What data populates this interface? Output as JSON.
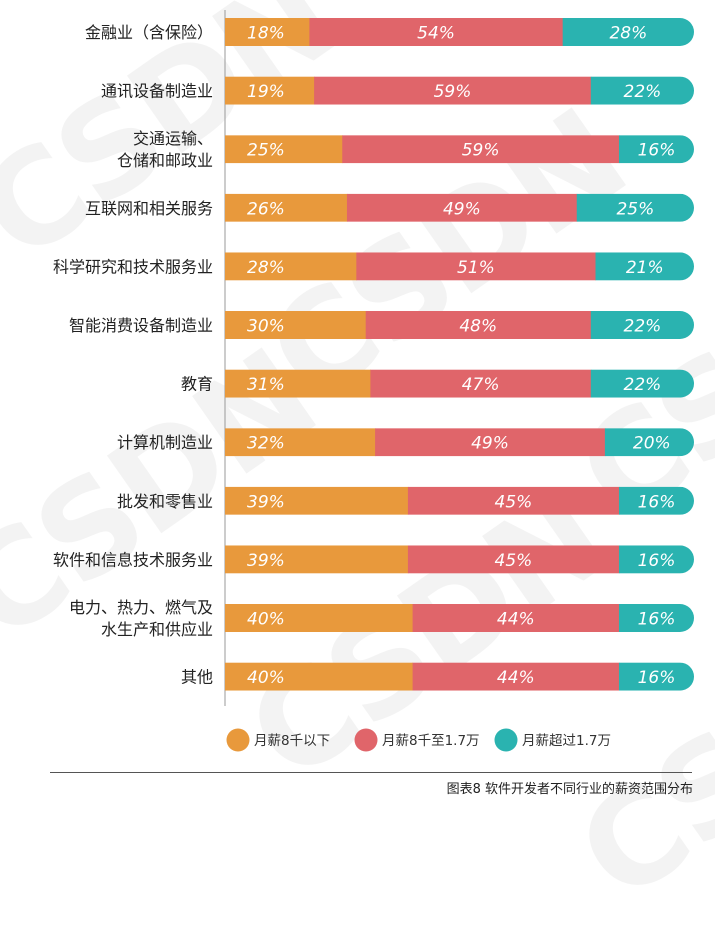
{
  "chart_data": {
    "type": "bar",
    "orientation": "horizontal",
    "stacked": true,
    "categories": [
      "金融业（含保险）",
      "通讯设备制造业",
      "交通运输、\n仓储和邮政业",
      "互联网和相关服务",
      "科学研究和技术服务业",
      "智能消费设备制造业",
      "教育",
      "计算机制造业",
      "批发和零售业",
      "软件和信息技术服务业",
      "电力、热力、燃气及\n水生产和供应业",
      "其他"
    ],
    "series": [
      {
        "name": "月薪8千以下",
        "color": "#e8993c",
        "values": [
          18,
          19,
          25,
          26,
          28,
          30,
          31,
          32,
          39,
          39,
          40,
          40
        ]
      },
      {
        "name": "月薪8千至1.7万",
        "color": "#e0656a",
        "values": [
          54,
          59,
          59,
          49,
          51,
          48,
          47,
          49,
          45,
          45,
          44,
          44
        ]
      },
      {
        "name": "月薪超过1.7万",
        "color": "#2ab3b0",
        "values": [
          28,
          22,
          16,
          25,
          21,
          22,
          22,
          20,
          16,
          16,
          16,
          16
        ]
      }
    ],
    "value_suffix": "%",
    "xlim": [
      0,
      100
    ],
    "legend_position": "bottom",
    "caption": "图表8 软件开发者不同行业的薪资范围分布"
  },
  "watermark": "CSDN"
}
